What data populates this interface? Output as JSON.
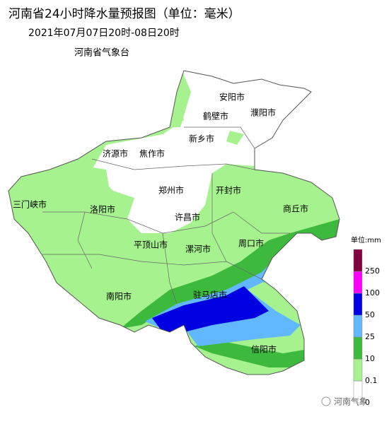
{
  "header": {
    "title": "河南省24小时降水量预报图（单位：毫米）",
    "subtitle": "2021年07月07日20时-08日20时",
    "source": "河南省气象台"
  },
  "cities": [
    {
      "label": "安阳市"
    },
    {
      "label": "鹤壁市"
    },
    {
      "label": "濮阳市"
    },
    {
      "label": "新乡市"
    },
    {
      "label": "济源市"
    },
    {
      "label": "焦作市"
    },
    {
      "label": "郑州市"
    },
    {
      "label": "开封市"
    },
    {
      "label": "三门峡市"
    },
    {
      "label": "洛阳市"
    },
    {
      "label": "许昌市"
    },
    {
      "label": "商丘市"
    },
    {
      "label": "平顶山市"
    },
    {
      "label": "漯河市"
    },
    {
      "label": "周口市"
    },
    {
      "label": "南阳市"
    },
    {
      "label": "驻马店市"
    },
    {
      "label": "信阳市"
    }
  ],
  "legend": {
    "unit": "单位:mm",
    "ticks": [
      0,
      0.1,
      10,
      25,
      50,
      100,
      250
    ],
    "colors": [
      "#ffffff",
      "#a6f28f",
      "#3dba3d",
      "#61b8ff",
      "#0000e1",
      "#fa00fa",
      "#800040"
    ]
  },
  "watermark": "河南气象"
}
